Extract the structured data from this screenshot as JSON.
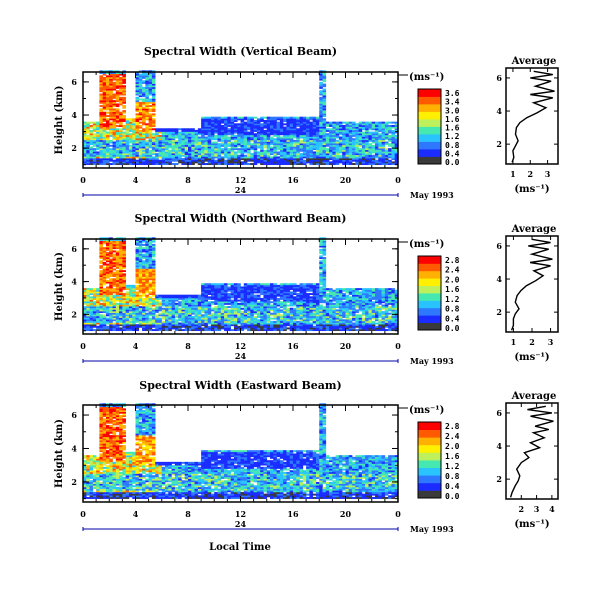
{
  "chart_data": [
    {
      "type": "heatmap",
      "title": "Spectral Width (Vertical Beam)",
      "ylabel": "Height (km)",
      "x_ticks": [
        "0",
        "4",
        "8",
        "12",
        "16",
        "20",
        "0"
      ],
      "day_label": "24",
      "date_label": "May 1993",
      "xlim": [
        0,
        24
      ],
      "y_ticks": [
        "2",
        "4",
        "6"
      ],
      "ylim": [
        0.8,
        6.6
      ],
      "unit_label": "(ms⁻¹)",
      "colorbar_ticks": [
        "3.6",
        "3.4",
        "3.0",
        "1.6",
        "1.6",
        "1.2",
        "0.8",
        "0.4",
        "0.0"
      ],
      "colorbar_range": [
        0.0,
        3.6
      ],
      "colorbar_colors": [
        "#3a3a3a",
        "#1a2cff",
        "#2e78ff",
        "#29c4ff",
        "#45e8b0",
        "#bdf05a",
        "#fff000",
        "#ffb000",
        "#ff5a00",
        "#ff0000"
      ],
      "features": [
        {
          "x": [
            1.2,
            3.2
          ],
          "y": [
            3.2,
            6.5
          ],
          "level": 3.4
        },
        {
          "x": [
            4.0,
            5.5
          ],
          "y": [
            3.0,
            4.8
          ],
          "level": 3.2
        },
        {
          "x": [
            9.0,
            18.0
          ],
          "y": [
            2.8,
            3.8
          ],
          "level": 0.6
        },
        {
          "x": [
            0.0,
            24.0
          ],
          "y": [
            1.5,
            2.5
          ],
          "level": 1.2
        }
      ],
      "average": {
        "title": "Average",
        "xlabel": "(ms⁻¹)",
        "x_ticks": [
          "1",
          "2",
          "3"
        ],
        "xlim": [
          0.6,
          3.6
        ],
        "y_ticks": [
          "2",
          "4",
          "6"
        ],
        "ylim": [
          0.8,
          6.6
        ],
        "profile": {
          "y": [
            0.9,
            1.2,
            1.6,
            1.9,
            2.2,
            2.6,
            3.0,
            3.3,
            3.6,
            3.9,
            4.2,
            4.5,
            4.8,
            5.0,
            5.2,
            5.5,
            5.8,
            6.0,
            6.2,
            6.4
          ],
          "x": [
            0.95,
            1.05,
            1.0,
            1.15,
            1.3,
            1.15,
            1.2,
            1.4,
            1.8,
            2.4,
            2.9,
            2.2,
            3.3,
            2.0,
            3.4,
            2.3,
            3.2,
            2.0,
            3.3,
            2.2
          ]
        }
      }
    },
    {
      "type": "heatmap",
      "title": "Spectral Width (Northward Beam)",
      "ylabel": "Height (km)",
      "x_ticks": [
        "0",
        "4",
        "8",
        "12",
        "16",
        "20",
        "0"
      ],
      "day_label": "24",
      "date_label": "May 1993",
      "xlim": [
        0,
        24
      ],
      "y_ticks": [
        "2",
        "4",
        "6"
      ],
      "ylim": [
        0.8,
        6.6
      ],
      "unit_label": "(ms⁻¹)",
      "colorbar_ticks": [
        "2.8",
        "2.4",
        "2.0",
        "1.6",
        "1.2",
        "0.8",
        "0.4",
        "0.0"
      ],
      "colorbar_range": [
        0.0,
        2.8
      ],
      "colorbar_colors": [
        "#3a3a3a",
        "#1a2cff",
        "#2e78ff",
        "#29c4ff",
        "#45e8b0",
        "#bdf05a",
        "#fff000",
        "#ffb000",
        "#ff5a00",
        "#ff0000"
      ],
      "features": [
        {
          "x": [
            1.2,
            3.2
          ],
          "y": [
            3.2,
            6.5
          ],
          "level": 2.6
        },
        {
          "x": [
            4.0,
            5.5
          ],
          "y": [
            3.0,
            4.8
          ],
          "level": 2.4
        },
        {
          "x": [
            9.0,
            18.0
          ],
          "y": [
            2.8,
            3.8
          ],
          "level": 0.5
        },
        {
          "x": [
            0.0,
            24.0
          ],
          "y": [
            1.5,
            2.5
          ],
          "level": 1.0
        }
      ],
      "average": {
        "title": "Average",
        "xlabel": "(ms⁻¹)",
        "x_ticks": [
          "1",
          "2",
          "3"
        ],
        "xlim": [
          0.6,
          3.4
        ],
        "y_ticks": [
          "2",
          "4",
          "6"
        ],
        "ylim": [
          0.8,
          6.6
        ],
        "profile": {
          "y": [
            0.9,
            1.2,
            1.6,
            1.9,
            2.2,
            2.6,
            3.0,
            3.3,
            3.6,
            3.9,
            4.2,
            4.5,
            4.8,
            5.0,
            5.2,
            5.5,
            5.8,
            6.0,
            6.2,
            6.4
          ],
          "x": [
            0.9,
            1.0,
            1.0,
            1.1,
            1.3,
            1.1,
            1.2,
            1.4,
            1.7,
            2.2,
            2.6,
            2.1,
            3.0,
            1.9,
            3.1,
            2.0,
            2.9,
            1.8,
            3.0,
            2.0
          ]
        }
      }
    },
    {
      "type": "heatmap",
      "title": "Spectral Width (Eastward Beam)",
      "ylabel": "Height (km)",
      "xlabel": "Local Time",
      "x_ticks": [
        "0",
        "4",
        "8",
        "12",
        "16",
        "20",
        "0"
      ],
      "day_label": "24",
      "date_label": "May 1993",
      "xlim": [
        0,
        24
      ],
      "y_ticks": [
        "2",
        "4",
        "6"
      ],
      "ylim": [
        0.8,
        6.6
      ],
      "unit_label": "(ms⁻¹)",
      "colorbar_ticks": [
        "2.8",
        "2.4",
        "2.0",
        "1.6",
        "1.2",
        "0.8",
        "0.4",
        "0.0"
      ],
      "colorbar_range": [
        0.0,
        2.8
      ],
      "colorbar_colors": [
        "#3a3a3a",
        "#1a2cff",
        "#2e78ff",
        "#29c4ff",
        "#45e8b0",
        "#bdf05a",
        "#fff000",
        "#ffb000",
        "#ff5a00",
        "#ff0000"
      ],
      "features": [
        {
          "x": [
            1.2,
            3.2
          ],
          "y": [
            3.2,
            6.5
          ],
          "level": 2.6
        },
        {
          "x": [
            4.0,
            5.5
          ],
          "y": [
            3.0,
            4.8
          ],
          "level": 2.4
        },
        {
          "x": [
            9.0,
            18.0
          ],
          "y": [
            2.8,
            3.8
          ],
          "level": 0.5
        },
        {
          "x": [
            0.0,
            24.0
          ],
          "y": [
            1.5,
            2.5
          ],
          "level": 1.0
        }
      ],
      "average": {
        "title": "Average",
        "xlabel": "(ms⁻¹)",
        "x_ticks": [
          "2",
          "3",
          "4"
        ],
        "xlim": [
          1.0,
          4.4
        ],
        "y_ticks": [
          "2",
          "4",
          "6"
        ],
        "ylim": [
          0.8,
          6.6
        ],
        "profile": {
          "y": [
            0.9,
            1.2,
            1.6,
            1.9,
            2.2,
            2.6,
            3.0,
            3.3,
            3.6,
            3.9,
            4.2,
            4.5,
            4.8,
            5.0,
            5.2,
            5.5,
            5.8,
            6.0,
            6.2,
            6.4
          ],
          "x": [
            1.3,
            1.4,
            1.6,
            1.8,
            1.9,
            1.7,
            2.0,
            2.5,
            2.2,
            3.2,
            2.6,
            3.5,
            2.8,
            3.8,
            2.9,
            4.1,
            2.6,
            4.0,
            2.4,
            3.6
          ]
        }
      }
    }
  ]
}
